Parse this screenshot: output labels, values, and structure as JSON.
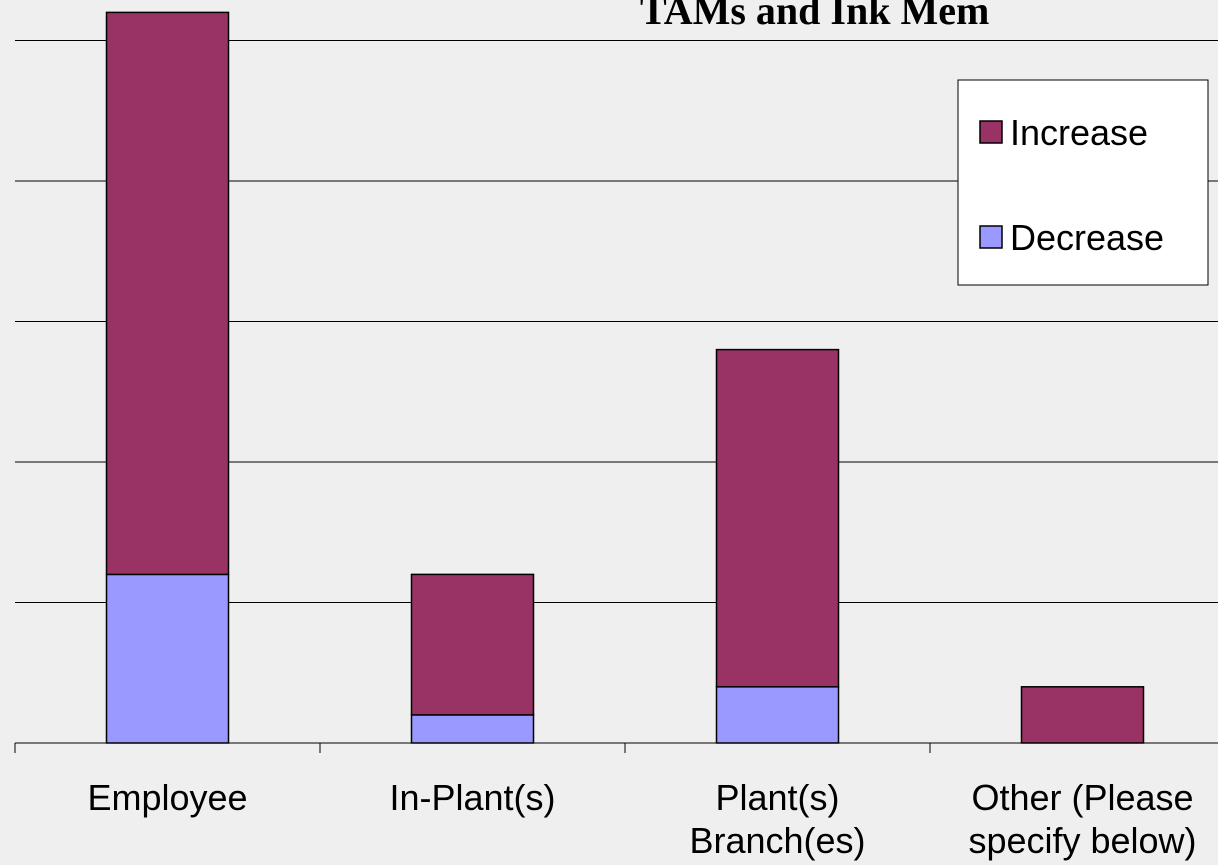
{
  "chart_data": {
    "type": "bar",
    "stacked": true,
    "title": "TAMs and Ink Mem",
    "categories": [
      [
        "Employee"
      ],
      [
        "In-Plant(s)"
      ],
      [
        "Plant(s)",
        "Branch(es)"
      ],
      [
        "Other (Please",
        "specify below)"
      ]
    ],
    "series": [
      {
        "name": "Decrease",
        "color": "#9999ff",
        "values": [
          6,
          1,
          2,
          0
        ]
      },
      {
        "name": "Increase",
        "color": "#993366",
        "values": [
          20,
          5,
          12,
          2
        ]
      }
    ],
    "ylim": [
      0,
      26
    ],
    "grid": true,
    "legend_position": "top-right"
  }
}
